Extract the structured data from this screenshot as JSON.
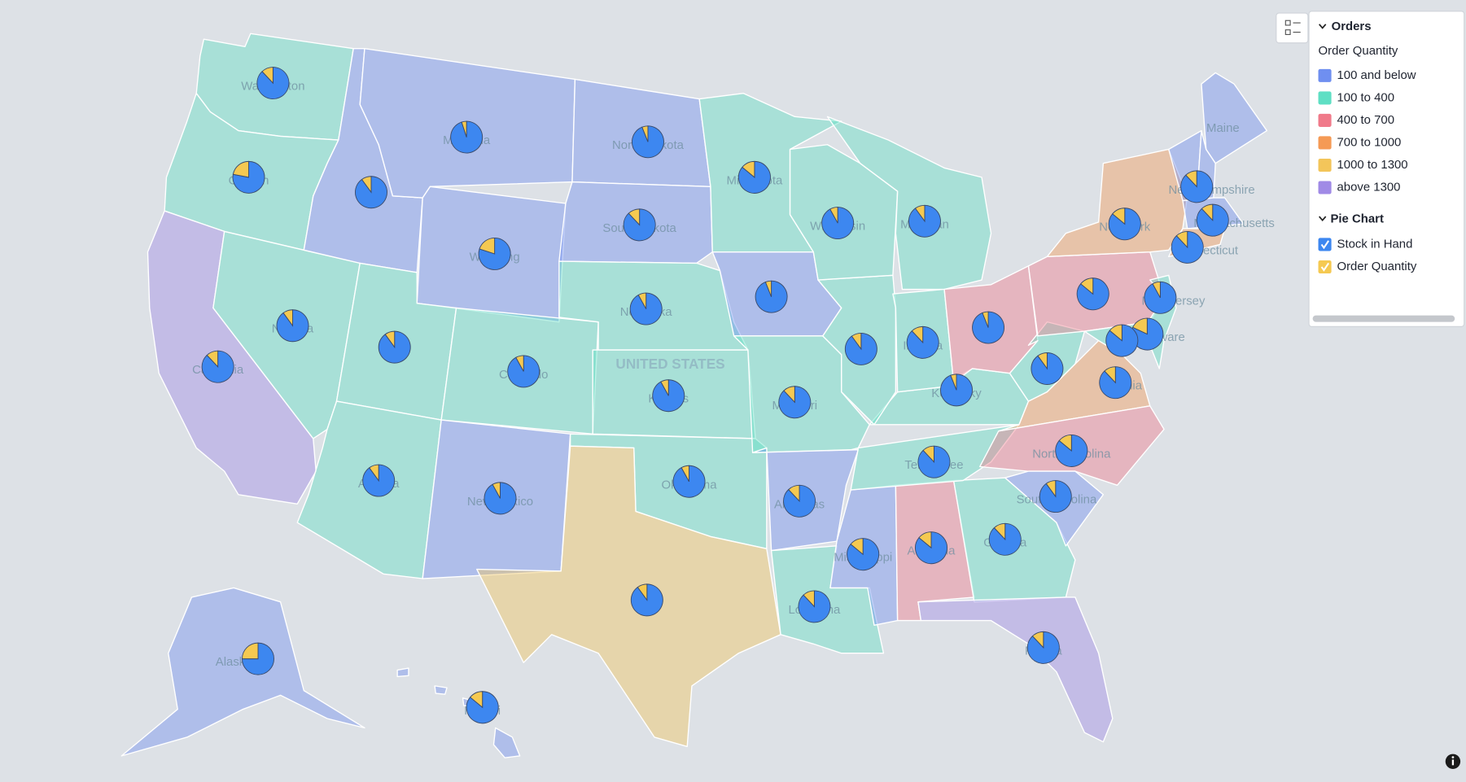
{
  "legend": {
    "title": "Orders",
    "subtitle": "Order Quantity",
    "items": [
      {
        "label": "100 and below",
        "color": "#6f8ff0"
      },
      {
        "label": "100 to 400",
        "color": "#5fdfc4"
      },
      {
        "label": "400 to 700",
        "color": "#f07a8a"
      },
      {
        "label": "700 to 1000",
        "color": "#f59a55"
      },
      {
        "label": "1000 to 1300",
        "color": "#f3c55a"
      },
      {
        "label": "above 1300",
        "color": "#a08ae6"
      }
    ],
    "pie_title": "Pie Chart",
    "pie_items": [
      {
        "label": "Stock in Hand",
        "color": "#3d87f0"
      },
      {
        "label": "Order Quantity",
        "color": "#f5c951"
      }
    ]
  },
  "map": {
    "country_label": "UNITED STATES",
    "states": [
      {
        "name": "Washington",
        "bin": "100 to 400",
        "stock_share": 88,
        "order_share": 12
      },
      {
        "name": "Oregon",
        "bin": "100 to 400",
        "stock_share": 78,
        "order_share": 22
      },
      {
        "name": "California",
        "bin": "above 1300",
        "stock_share": 88,
        "order_share": 12
      },
      {
        "name": "Nevada",
        "bin": "100 to 400",
        "stock_share": 90,
        "order_share": 10
      },
      {
        "bin": "100 and below",
        "stock_share": 90,
        "order_share": 10
      },
      {
        "name": "Montana",
        "bin": "100 and below",
        "stock_share": 95,
        "order_share": 5
      },
      {
        "name": "Wyoming",
        "bin": "100 and below",
        "stock_share": 80,
        "order_share": 20
      },
      {
        "bin": "100 to 400",
        "stock_share": 90,
        "order_share": 10
      },
      {
        "name": "Colorado",
        "bin": "100 to 400",
        "stock_share": 92,
        "order_share": 8
      },
      {
        "name": "Arizona",
        "bin": "100 to 400",
        "stock_share": 90,
        "order_share": 10
      },
      {
        "name": "New Mexico",
        "bin": "100 and below",
        "stock_share": 92,
        "order_share": 8
      },
      {
        "name": "North Dakota",
        "bin": "100 and below",
        "stock_share": 94,
        "order_share": 6
      },
      {
        "name": "South Dakota",
        "bin": "100 and below",
        "stock_share": 88,
        "order_share": 12
      },
      {
        "name": "Nebraska",
        "bin": "100 to 400",
        "stock_share": 92,
        "order_share": 8
      },
      {
        "name": "Kansas",
        "bin": "100 to 400",
        "stock_share": 92,
        "order_share": 8
      },
      {
        "name": "Oklahoma",
        "bin": "100 to 400",
        "stock_share": 92,
        "order_share": 8
      },
      {
        "bin": "1000 to 1300",
        "stock_share": 90,
        "order_share": 10
      },
      {
        "name": "Minnesota",
        "bin": "100 to 400",
        "stock_share": 86,
        "order_share": 14
      },
      {
        "bin": "100 and below",
        "stock_share": 94,
        "order_share": 6
      },
      {
        "name": "Missouri",
        "bin": "100 to 400",
        "stock_share": 88,
        "order_share": 12
      },
      {
        "name": "Arkansas",
        "bin": "100 and below",
        "stock_share": 88,
        "order_share": 12
      },
      {
        "name": "Louisiana",
        "bin": "100 to 400",
        "stock_share": 88,
        "order_share": 12
      },
      {
        "name": "Mississippi",
        "bin": "100 and below",
        "stock_share": 86,
        "order_share": 14
      },
      {
        "name": "Alabama",
        "bin": "400 to 700",
        "stock_share": 86,
        "order_share": 14
      },
      {
        "name": "Georgia",
        "bin": "100 to 400",
        "stock_share": 88,
        "order_share": 12
      },
      {
        "name": "Florida",
        "bin": "above 1300",
        "stock_share": 88,
        "order_share": 12
      },
      {
        "name": "Tennessee",
        "bin": "100 to 400",
        "stock_share": 88,
        "order_share": 12
      },
      {
        "name": "Kentucky",
        "bin": "100 to 400",
        "stock_share": 94,
        "order_share": 6
      },
      {
        "bin": "100 to 400",
        "stock_share": 90,
        "order_share": 10
      },
      {
        "name": "Wisconsin",
        "bin": "100 to 400",
        "stock_share": 92,
        "order_share": 8
      },
      {
        "name": "Michigan",
        "bin": "100 to 400",
        "stock_share": 90,
        "order_share": 10
      },
      {
        "name": "Indiana",
        "bin": "100 to 400",
        "stock_share": 88,
        "order_share": 12
      },
      {
        "bin": "400 to 700",
        "stock_share": 94,
        "order_share": 6
      },
      {
        "bin": "100 to 400",
        "stock_share": 90,
        "order_share": 10
      },
      {
        "name": "Virginia",
        "bin": "700 to 1000",
        "stock_share": 88,
        "order_share": 12
      },
      {
        "name": "North Carolina",
        "bin": "400 to 700",
        "stock_share": 86,
        "order_share": 14
      },
      {
        "name": "South Carolina",
        "bin": "100 and below",
        "stock_share": 90,
        "order_share": 10
      },
      {
        "bin": "400 to 700",
        "stock_share": 86,
        "order_share": 14
      },
      {
        "name": "New York",
        "bin": "700 to 1000",
        "stock_share": 86,
        "order_share": 14
      },
      {
        "name": "Maine",
        "bin": "100 and below"
      },
      {
        "bin": "100 and below"
      },
      {
        "name": "New Hampshire",
        "bin": "100 and below",
        "stock_share": 88,
        "order_share": 12
      },
      {
        "name": "Massachusetts",
        "bin": "100 and below",
        "stock_share": 88,
        "order_share": 12
      },
      {
        "name": "Connecticut",
        "bin": "700 to 1000",
        "stock_share": 88,
        "order_share": 12
      },
      {
        "name": "New Jersey",
        "bin": "100 to 400",
        "stock_share": 92,
        "order_share": 8
      },
      {
        "name": "Delaware",
        "bin": "100 to 400",
        "stock_share": 82,
        "order_share": 18
      },
      {
        "bin": "100 to 400",
        "stock_share": 86,
        "order_share": 14
      },
      {
        "name": "Alaska",
        "bin": "100 and below",
        "stock_share": 75,
        "order_share": 25
      },
      {
        "name": "Hawaii",
        "bin": "100 and below",
        "stock_share": 86,
        "order_share": 14
      }
    ]
  }
}
